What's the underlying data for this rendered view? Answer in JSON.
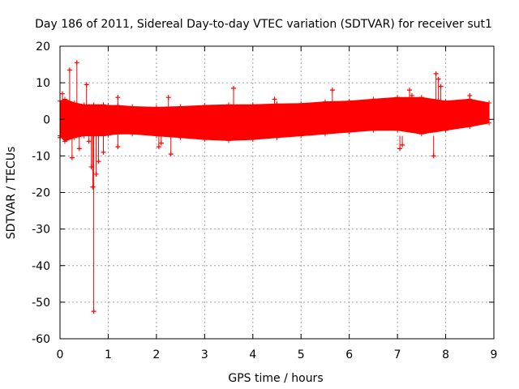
{
  "chart_data": {
    "type": "scatter",
    "title": "Day 186 of 2011, Sidereal Day-to-day VTEC variation (SDTVAR) for receiver sut1",
    "xlabel": "GPS time / hours",
    "ylabel": "SDTVAR / TECUs",
    "xlim": [
      0,
      9
    ],
    "ylim": [
      -60,
      20
    ],
    "x_ticks": [
      "0",
      "1",
      "2",
      "3",
      "4",
      "5",
      "6",
      "7",
      "8",
      "9"
    ],
    "y_ticks": [
      "-60",
      "-50",
      "-40",
      "-30",
      "-20",
      "-10",
      "0",
      "10",
      "20"
    ],
    "grid": true,
    "marker": "+",
    "color": "#ff0000",
    "band": {
      "x": [
        0.0,
        0.1,
        0.3,
        0.5,
        0.7,
        0.9,
        1.0,
        1.2,
        1.5,
        2.0,
        2.5,
        3.0,
        3.5,
        4.0,
        4.5,
        5.0,
        5.5,
        6.0,
        6.5,
        7.0,
        7.5,
        8.0,
        8.5,
        8.9
      ],
      "upper": [
        5.0,
        5.5,
        4.5,
        4.0,
        4.0,
        4.0,
        3.8,
        3.8,
        3.5,
        3.3,
        3.5,
        3.8,
        4.0,
        4.0,
        4.2,
        4.3,
        4.8,
        5.0,
        5.5,
        6.0,
        6.0,
        5.0,
        5.5,
        4.5
      ],
      "lower": [
        -4.5,
        -6.0,
        -5.0,
        -4.5,
        -4.5,
        -4.5,
        -4.3,
        -4.0,
        -4.0,
        -4.5,
        -5.0,
        -5.5,
        -5.8,
        -5.5,
        -5.0,
        -4.5,
        -4.0,
        -3.5,
        -3.0,
        -3.0,
        -4.0,
        -3.0,
        -2.0,
        -1.0
      ]
    },
    "spikes": [
      {
        "x": 0.0,
        "y": -5.0
      },
      {
        "x": 0.05,
        "y": 7.0
      },
      {
        "x": 0.2,
        "y": 13.5
      },
      {
        "x": 0.25,
        "y": -10.5
      },
      {
        "x": 0.35,
        "y": 15.5
      },
      {
        "x": 0.4,
        "y": -8.0
      },
      {
        "x": 0.55,
        "y": 9.5
      },
      {
        "x": 0.6,
        "y": -6.0
      },
      {
        "x": 0.65,
        "y": -13.0
      },
      {
        "x": 0.68,
        "y": -18.5
      },
      {
        "x": 0.7,
        "y": -52.5
      },
      {
        "x": 0.75,
        "y": -15.0
      },
      {
        "x": 0.8,
        "y": -11.5
      },
      {
        "x": 0.9,
        "y": -9.0
      },
      {
        "x": 1.2,
        "y": 6.0
      },
      {
        "x": 1.2,
        "y": -7.5
      },
      {
        "x": 2.05,
        "y": -7.5
      },
      {
        "x": 2.1,
        "y": -6.5
      },
      {
        "x": 2.25,
        "y": 6.0
      },
      {
        "x": 2.3,
        "y": -9.5
      },
      {
        "x": 3.6,
        "y": 8.5
      },
      {
        "x": 4.45,
        "y": 5.5
      },
      {
        "x": 5.65,
        "y": 8.0
      },
      {
        "x": 7.05,
        "y": -8.0
      },
      {
        "x": 7.1,
        "y": -7.0
      },
      {
        "x": 7.25,
        "y": 8.0
      },
      {
        "x": 7.3,
        "y": 6.5
      },
      {
        "x": 7.75,
        "y": -10.0
      },
      {
        "x": 7.8,
        "y": 12.5
      },
      {
        "x": 7.85,
        "y": 11.0
      },
      {
        "x": 7.9,
        "y": 9.0
      },
      {
        "x": 8.5,
        "y": 6.5
      }
    ]
  }
}
